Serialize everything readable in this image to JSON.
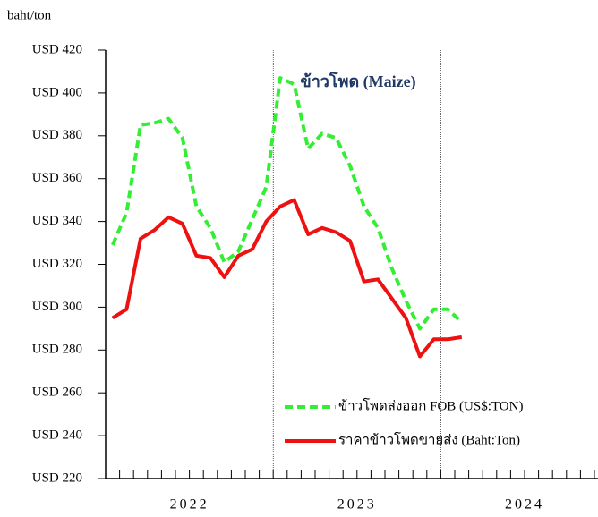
{
  "chart_data": {
    "type": "line",
    "title": "ข้าวโพด (Maize)",
    "y_axis_label": "baht/ton",
    "categories": [
      null,
      null,
      null,
      null,
      null,
      null,
      null,
      null,
      null,
      null,
      null,
      null,
      null,
      null,
      null,
      null,
      null,
      null,
      null,
      null,
      null,
      null,
      null,
      null,
      null,
      null
    ],
    "year_labels": [
      "2022",
      "2023",
      "2024"
    ],
    "series": [
      {
        "name": "ข้าวโพดส่งออก FOB (US$:TON)",
        "color": "#33ee33",
        "dashed": true,
        "values": [
          329,
          344,
          385,
          386,
          388,
          379,
          347,
          337,
          321,
          326,
          341,
          356,
          407,
          404,
          374,
          381,
          379,
          366,
          347,
          337,
          318,
          303,
          290,
          299,
          299,
          293
        ]
      },
      {
        "name": "ราคาข้าวโพดขายส่ง (Baht:Ton)",
        "color": "#ee1111",
        "dashed": false,
        "values": [
          295,
          299,
          332,
          336,
          342,
          339,
          324,
          323,
          314,
          324,
          327,
          340,
          347,
          350,
          334,
          337,
          335,
          331,
          312,
          313,
          304,
          295,
          277,
          285,
          285,
          286
        ]
      }
    ],
    "ylim": [
      220,
      420
    ],
    "yticks": [
      {
        "value": 220,
        "label": "USD 220"
      },
      {
        "value": 240,
        "label": "USD 240"
      },
      {
        "value": 260,
        "label": "USD 260"
      },
      {
        "value": 280,
        "label": "USD 280"
      },
      {
        "value": 300,
        "label": "USD 300"
      },
      {
        "value": 320,
        "label": "USD 320"
      },
      {
        "value": 340,
        "label": "USD 340"
      },
      {
        "value": 360,
        "label": "USD 360"
      },
      {
        "value": 380,
        "label": "USD 380"
      },
      {
        "value": 400,
        "label": "USD 400"
      },
      {
        "value": 420,
        "label": "USD 420"
      }
    ],
    "grid": false
  }
}
